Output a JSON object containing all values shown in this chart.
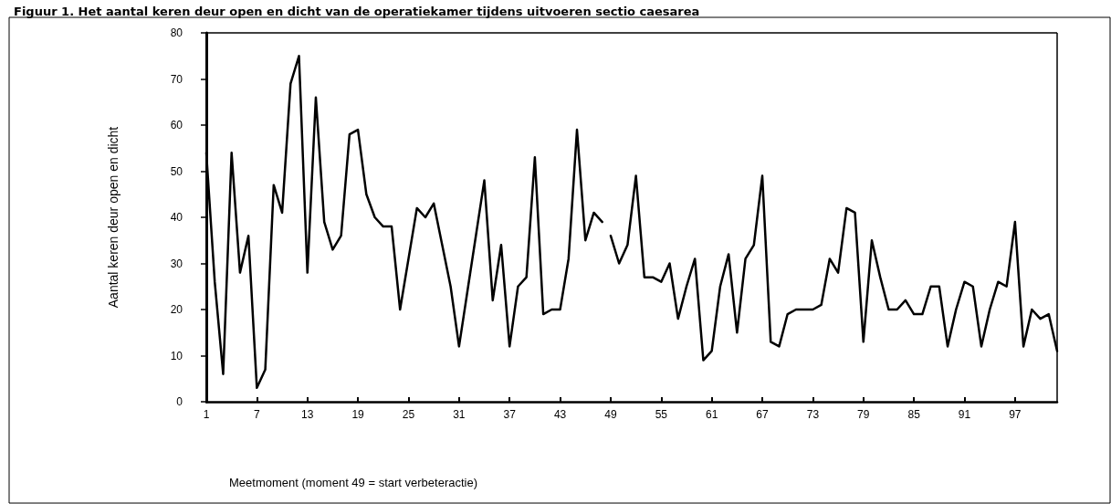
{
  "chart_data": {
    "type": "line",
    "title": "Figuur 1. Het aantal keren deur open en dicht van de operatiekamer tijdens uitvoeren sectio caesarea",
    "xlabel": "Meetmoment (moment 49 = start verbeteractie)",
    "ylabel": "Aantal keren deur open en dicht",
    "series": [
      {
        "color": "#000000",
        "x": [
          1,
          2,
          3,
          4,
          5,
          6,
          7,
          8,
          9,
          10,
          11,
          12,
          13,
          14,
          15,
          16,
          17,
          18,
          19,
          20,
          21,
          22,
          23,
          24,
          25,
          26,
          27,
          28,
          29,
          30,
          31,
          32,
          33,
          34,
          35,
          36,
          37,
          38,
          39,
          40,
          41,
          42,
          43,
          44,
          45,
          46,
          47,
          48
        ],
        "values": [
          54,
          26,
          6,
          54,
          28,
          36,
          3,
          7,
          47,
          41,
          69,
          75,
          28,
          66,
          39,
          33,
          36,
          58,
          59,
          45,
          40,
          38,
          38,
          20,
          31,
          42,
          40,
          43,
          34,
          25,
          12,
          24,
          36,
          48,
          22,
          34,
          12,
          25,
          27,
          53,
          19,
          20,
          20,
          31,
          59,
          35,
          41,
          39
        ]
      },
      {
        "color": "#000000",
        "x": [
          49,
          50,
          51,
          52,
          53,
          54,
          55,
          56,
          57,
          58,
          59,
          60,
          61,
          62,
          63,
          64,
          65,
          66,
          67,
          68,
          69,
          70,
          71,
          72,
          73,
          74,
          75,
          76,
          77,
          78,
          79,
          80,
          81,
          82,
          83,
          84,
          85,
          86,
          87,
          88,
          89,
          90,
          91,
          92,
          93,
          94,
          95,
          96,
          97,
          98,
          99,
          100,
          101,
          102
        ],
        "values": [
          36,
          30,
          34,
          49,
          27,
          27,
          26,
          30,
          18,
          25,
          31,
          9,
          11,
          25,
          32,
          15,
          31,
          34,
          49,
          13,
          12,
          19,
          20,
          20,
          20,
          21,
          31,
          28,
          42,
          41,
          13,
          35,
          27,
          20,
          20,
          22,
          19,
          19,
          25,
          25,
          12,
          20,
          26,
          25,
          12,
          20,
          26,
          25,
          39,
          12,
          20,
          18,
          19,
          11
        ]
      }
    ],
    "xlim": [
      1,
      102
    ],
    "xticks": [
      1,
      7,
      13,
      19,
      25,
      31,
      37,
      43,
      49,
      55,
      61,
      67,
      73,
      79,
      85,
      91,
      97
    ],
    "ylim": [
      0,
      80
    ],
    "yticks": [
      0,
      10,
      20,
      30,
      40,
      50,
      60,
      70,
      80
    ],
    "grid": false,
    "marker": "none",
    "line_style": "solid"
  }
}
